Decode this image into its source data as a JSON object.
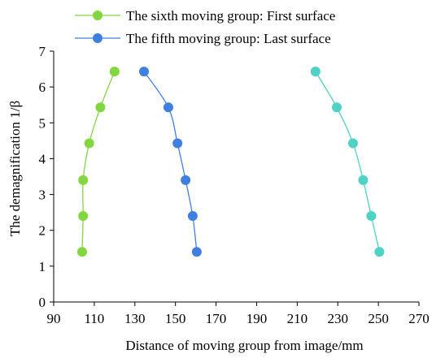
{
  "chart_data": {
    "type": "scatter",
    "xlabel": "Distance of moving  group from image/mm",
    "ylabel": "The demagnification 1/β",
    "xlim": [
      90,
      270
    ],
    "ylim": [
      0,
      7
    ],
    "xticks": [
      "90",
      "110",
      "130",
      "150",
      "170",
      "190",
      "210",
      "230",
      "250",
      "270"
    ],
    "yticks": [
      "0",
      "1",
      "2",
      "3",
      "4",
      "5",
      "6",
      "7"
    ],
    "grid": false,
    "legend_position": "top-left",
    "series": [
      {
        "name": "The sixth moving group: First surface",
        "color": "#82d63f",
        "in_legend": true,
        "points": [
          [
            104,
            1.4
          ],
          [
            104.5,
            2.4
          ],
          [
            104.5,
            3.4
          ],
          [
            107.5,
            4.43
          ],
          [
            113,
            5.43
          ],
          [
            120,
            6.43
          ]
        ]
      },
      {
        "name": "The fifth moving group: Last surface",
        "color": "#3f7fe0",
        "in_legend": true,
        "points": [
          [
            160.5,
            1.4
          ],
          [
            158.5,
            2.4
          ],
          [
            155,
            3.4
          ],
          [
            151,
            4.43
          ],
          [
            146.5,
            5.43
          ],
          [
            134.5,
            6.43
          ]
        ]
      },
      {
        "name": "",
        "color": "#4fd1c5",
        "in_legend": false,
        "points": [
          [
            250.5,
            1.4
          ],
          [
            246.5,
            2.4
          ],
          [
            242.5,
            3.4
          ],
          [
            237.5,
            4.43
          ],
          [
            229.5,
            5.43
          ],
          [
            219,
            6.43
          ]
        ]
      }
    ]
  }
}
